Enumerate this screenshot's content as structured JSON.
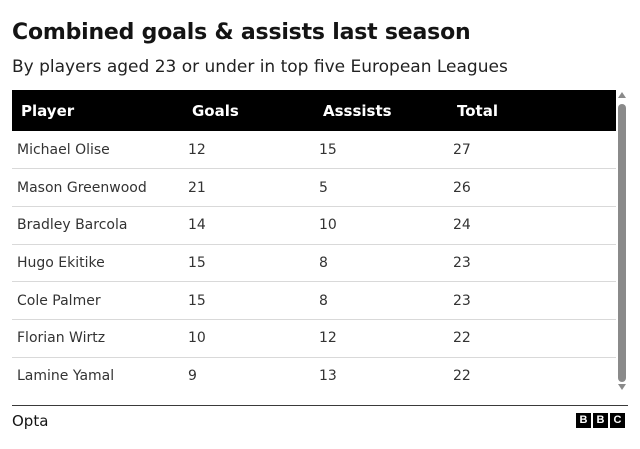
{
  "title": "Combined goals & assists last season",
  "subtitle": "By players aged 23 or under in top five European Leagues",
  "source": "Opta",
  "logo_letters": [
    "B",
    "B",
    "C"
  ],
  "chart_data": {
    "type": "table",
    "columns": [
      "Player",
      "Goals",
      "Asssists",
      "Total"
    ],
    "rows": [
      [
        "Michael Olise",
        "12",
        "15",
        "27"
      ],
      [
        "Mason Greenwood",
        "21",
        "5",
        "26"
      ],
      [
        "Bradley Barcola",
        "14",
        "10",
        "24"
      ],
      [
        "Hugo Ekitike",
        "15",
        "8",
        "23"
      ],
      [
        "Cole Palmer",
        "15",
        "8",
        "23"
      ],
      [
        "Florian Wirtz",
        "10",
        "12",
        "22"
      ],
      [
        "Lamine Yamal",
        "9",
        "13",
        "22"
      ]
    ]
  },
  "colors": {
    "header_bg": "#000000",
    "header_text": "#ffffff",
    "row_divider": "#d9d9d9",
    "scrollbar": "#8a8a8a"
  }
}
